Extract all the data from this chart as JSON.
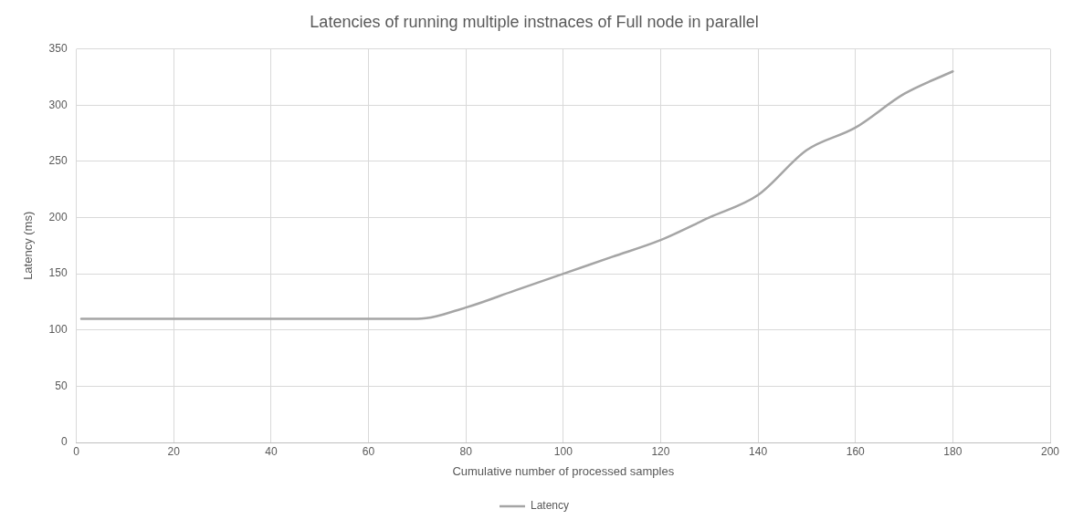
{
  "chart_data": {
    "type": "line",
    "title": "Latencies of running multiple instnaces of Full node in parallel",
    "xlabel": "Cumulative number of processed samples",
    "ylabel": "Latency (ms)",
    "x": [
      1,
      10,
      20,
      30,
      40,
      50,
      60,
      70,
      80,
      90,
      100,
      110,
      120,
      130,
      140,
      150,
      160,
      170,
      180
    ],
    "series": [
      {
        "name": "Latency",
        "color": "#a5a5a5",
        "values": [
          110,
          110,
          110,
          110,
          110,
          110,
          110,
          110,
          120,
          135,
          150,
          165,
          180,
          200,
          220,
          260,
          280,
          310,
          330
        ]
      }
    ],
    "xlim": [
      0,
      200
    ],
    "xticks": [
      0,
      20,
      40,
      60,
      80,
      100,
      120,
      140,
      160,
      180,
      200
    ],
    "ylim": [
      0,
      350
    ],
    "yticks": [
      0,
      50,
      100,
      150,
      200,
      250,
      300,
      350
    ],
    "grid": true,
    "legend": "bottom",
    "marker": "none",
    "line_style": "solid"
  }
}
